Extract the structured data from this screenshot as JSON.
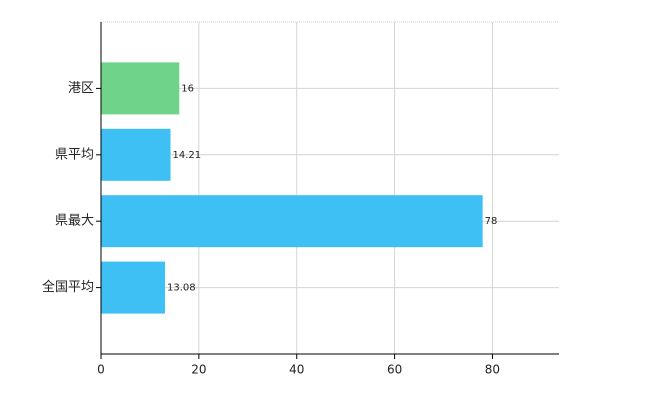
{
  "chart_data": {
    "type": "hbar",
    "categories": [
      "港区",
      "県平均",
      "県最大",
      "全国平均"
    ],
    "values": [
      16,
      14.21,
      78,
      13.08
    ],
    "colors": [
      "#70d38a",
      "#3fc0f5",
      "#3fc0f5",
      "#3fc0f5"
    ],
    "xlim": [
      0,
      93.6
    ],
    "xticks": [
      0,
      20,
      40,
      60,
      80
    ],
    "grid": true
  }
}
